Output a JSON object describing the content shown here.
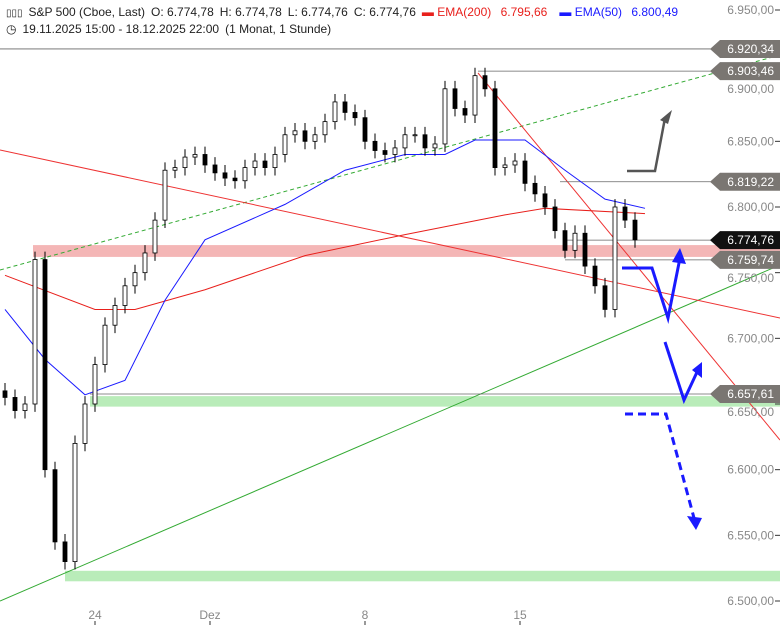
{
  "header": {
    "symbol": "S&P 500 (Cboe, Last)",
    "open": "O: 6.774,78",
    "high": "H: 6.774,78",
    "low": "L: 6.774,76",
    "close": "C: 6.774,76",
    "ema200_label": "EMA(200)",
    "ema200_value": "6.795,66",
    "ema50_label": "EMA(50)",
    "ema50_value": "6.800,49",
    "range": "19.11.2025 15:00 - 18.12.2025 22:00",
    "period": "(1 Monat, 1 Stunde)"
  },
  "colors": {
    "ema200": "#e8201c",
    "ema50": "#1a1aff",
    "support_zone": "#b9ecb9",
    "resistance_zone": "#f4b6b6",
    "arrow": "#1a1aff",
    "last_price": "#111111",
    "level_tag": "#7a7672"
  },
  "chart_data": {
    "type": "candlestick",
    "ylim": [
      6500,
      6950
    ],
    "y_ticks": [
      "6.950,00",
      "6.900,00",
      "6.850,00",
      "6.800,00",
      "6.750,00",
      "6.700,00",
      "6.650,00",
      "6.600,00",
      "6.550,00",
      "6.500,00"
    ],
    "y_tick_values": [
      6950,
      6900,
      6850,
      6800,
      6750,
      6700,
      6650,
      6600,
      6550,
      6500
    ],
    "x_ticks": [
      {
        "label": "24",
        "index": 9
      },
      {
        "label": "Dez",
        "index": 20.5
      },
      {
        "label": "8",
        "index": 36
      },
      {
        "label": "15",
        "index": 51.5
      }
    ],
    "closes": [
      6655,
      6645,
      6650,
      6760,
      6600,
      6545,
      6530,
      6620,
      6650,
      6680,
      6710,
      6725,
      6740,
      6750,
      6765,
      6790,
      6828,
      6830,
      6838,
      6840,
      6832,
      6826,
      6822,
      6820,
      6830,
      6835,
      6830,
      6840,
      6855,
      6858,
      6850,
      6855,
      6865,
      6880,
      6872,
      6868,
      6850,
      6843,
      6840,
      6845,
      6855,
      6855,
      6845,
      6848,
      6890,
      6875,
      6870,
      6900,
      6890,
      6830,
      6832,
      6835,
      6818,
      6810,
      6800,
      6782,
      6767,
      6780,
      6755,
      6740,
      6722,
      6800,
      6790,
      6775
    ],
    "series": [
      {
        "name": "EMA(200)",
        "points": [
          [
            0,
            6748
          ],
          [
            9,
            6722
          ],
          [
            13,
            6722
          ],
          [
            20,
            6737
          ],
          [
            30,
            6763
          ],
          [
            40,
            6779
          ],
          [
            50,
            6794
          ],
          [
            54,
            6799
          ],
          [
            64,
            6795
          ]
        ]
      },
      {
        "name": "EMA(50)",
        "points": [
          [
            0,
            6722
          ],
          [
            4,
            6684
          ],
          [
            8,
            6657
          ],
          [
            12,
            6668
          ],
          [
            16,
            6729
          ],
          [
            20,
            6775
          ],
          [
            28,
            6802
          ],
          [
            34,
            6828
          ],
          [
            40,
            6840
          ],
          [
            44,
            6840
          ],
          [
            47,
            6851
          ],
          [
            52,
            6851
          ],
          [
            56,
            6828
          ],
          [
            60,
            6806
          ],
          [
            64,
            6799
          ]
        ]
      }
    ],
    "levels": [
      {
        "label": "6.920,34",
        "value": 6920.34,
        "style": "line"
      },
      {
        "label": "6.903,46",
        "value": 6903.46,
        "style": "tag"
      },
      {
        "label": "6.819,22",
        "value": 6819.22,
        "style": "tag"
      },
      {
        "label": "6.774,76",
        "value": 6774.76,
        "style": "last"
      },
      {
        "label": "6.759,74",
        "value": 6759.74,
        "style": "tag"
      },
      {
        "label": "6.657,61",
        "value": 6657.61,
        "style": "tag"
      }
    ]
  }
}
